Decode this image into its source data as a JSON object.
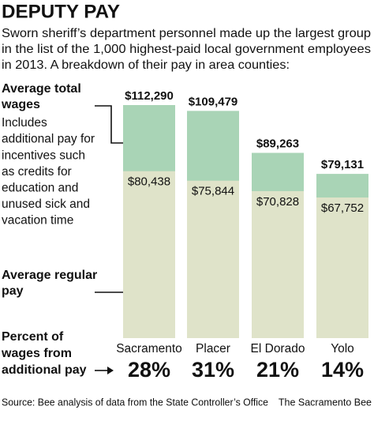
{
  "chart_data": {
    "type": "overlay-bar",
    "title": "DEPUTY PAY",
    "subtitle": [
      "Sworn sheriff’s department personnel made up the largest group",
      "in the list of the 1,000 highest-paid local government employees",
      "in 2013. A breakdown of their pay in area counties:"
    ],
    "categories": [
      "Sacramento",
      "Placer",
      "El Dorado",
      "Yolo"
    ],
    "series": [
      {
        "name": "Average total wages",
        "color": "#a9d4b6",
        "values": [
          112290,
          109479,
          89263,
          79131
        ],
        "value_labels": [
          "$112,290",
          "$109,479",
          "$89,263",
          "$79,131"
        ]
      },
      {
        "name": "Average regular pay",
        "color": "#dfe3c9",
        "values": [
          80438,
          75844,
          70828,
          67752
        ],
        "value_labels": [
          "$80,438",
          "$75,844",
          "$70,828",
          "$67,752"
        ]
      }
    ],
    "total_note": [
      "Includes",
      "additional pay for",
      "incentives such",
      "as credits for",
      "education and",
      "unused sick and",
      "vacation time"
    ],
    "percent": {
      "label": [
        "Percent of",
        "wages from",
        "additional pay"
      ],
      "color": "#2fa595",
      "values": [
        28,
        31,
        21,
        14
      ],
      "value_labels": [
        "28%",
        "31%",
        "21%",
        "14%"
      ]
    },
    "source": "Source: Bee analysis of data from the State Controller’s Office",
    "credit": "The Sacramento Bee"
  }
}
